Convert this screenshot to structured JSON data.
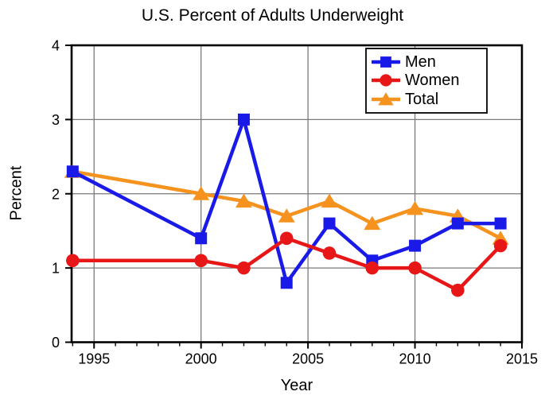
{
  "chart_data": {
    "type": "line",
    "title": "U.S. Percent of Adults Underweight",
    "xlabel": "Year",
    "ylabel": "Percent",
    "xlim": [
      1993.95,
      2015
    ],
    "ylim": [
      0,
      4
    ],
    "x_major_ticks": [
      1995,
      2000,
      2005,
      2010,
      2015
    ],
    "x_minor_tick_step": 1,
    "y_major_ticks": [
      0,
      1,
      2,
      3,
      4
    ],
    "grid": true,
    "grid_color": "#7a7a7a",
    "axis_color": "#000000",
    "background_color": "#ffffff",
    "x": [
      1994,
      2000,
      2002,
      2004,
      2006,
      2008,
      2010,
      2012,
      2014
    ],
    "series": [
      {
        "name": "Men",
        "marker": "square",
        "color": "#1a1ae8",
        "values": [
          2.3,
          1.4,
          3.0,
          0.8,
          1.6,
          1.1,
          1.3,
          1.6,
          1.6
        ]
      },
      {
        "name": "Women",
        "marker": "circle",
        "color": "#e81717",
        "values": [
          1.1,
          1.1,
          1.0,
          1.4,
          1.2,
          1.0,
          1.0,
          0.7,
          1.3
        ]
      },
      {
        "name": "Total",
        "marker": "triangle",
        "color": "#f6921e",
        "values": [
          2.3,
          2.0,
          1.9,
          1.7,
          1.9,
          1.6,
          1.8,
          1.7,
          1.4
        ]
      }
    ],
    "draw_order": [
      "Total",
      "Men",
      "Women"
    ],
    "legend": {
      "position": "top-right",
      "entries": [
        "Men",
        "Women",
        "Total"
      ]
    }
  }
}
